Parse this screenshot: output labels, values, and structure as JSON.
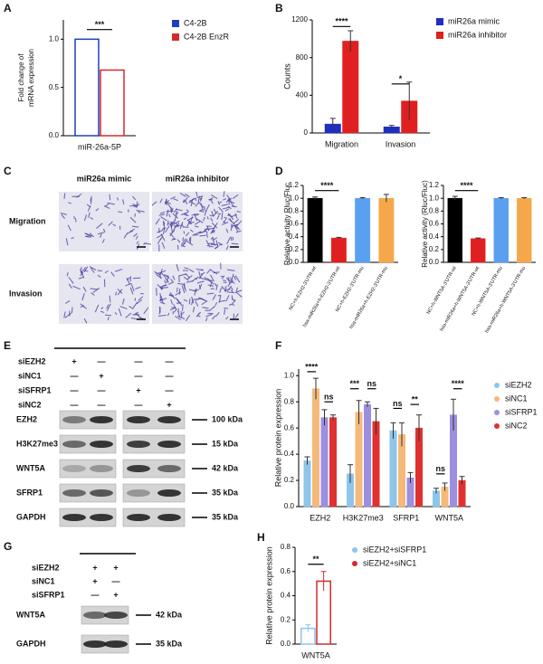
{
  "panel_labels": [
    "A",
    "B",
    "C",
    "D",
    "E",
    "F",
    "G",
    "H"
  ],
  "chart_data": [
    {
      "type": "bar",
      "y_label": [
        "Fold change of",
        "mRNA expression"
      ],
      "categories": [
        "miR-26a-5P"
      ],
      "series": [
        {
          "name": "C4-2B",
          "color": "#1f3fbf",
          "values": [
            1.0
          ]
        },
        {
          "name": "C4-2B EnzR",
          "color": "#d42a2a",
          "values": [
            0.68
          ]
        }
      ],
      "bar_fill": "outline",
      "ylim": [
        0,
        1.2
      ],
      "yticks": [
        {
          "value": 0,
          "label": "0.0"
        },
        {
          "value": 0.5,
          "label": "0.5"
        },
        {
          "value": 1,
          "label": "1.0"
        }
      ],
      "annotations": [
        "***"
      ]
    },
    {
      "type": "bar",
      "y_label": [
        "Counts"
      ],
      "categories": [
        "Migration",
        "Invasion"
      ],
      "series": [
        {
          "name": "miR26a mimic",
          "color": "#1f2fbf",
          "values": [
            95,
            65
          ],
          "errors": [
            60,
            15
          ]
        },
        {
          "name": "miR26a inhibitor",
          "color": "#e02020",
          "values": [
            975,
            340
          ],
          "errors": [
            110,
            200
          ]
        }
      ],
      "ylim": [
        0,
        1200
      ],
      "yticks": [
        0,
        400,
        800,
        1200
      ],
      "annotations": [
        "****",
        "*"
      ]
    },
    {
      "type": "bar",
      "y_label": [
        "Relative activity Rluc/Fluc"
      ],
      "categories": [
        "NC+h-EZH2-3'UTR-wt",
        "hsa-miR26a+h-EZH2-3'UTR-wt",
        "NC+h-EZH2-3'UTR-mu",
        "hsa-miR26a+h-EZH2-3'UTR-mu"
      ],
      "values": [
        1.0,
        0.38,
        1.0,
        1.0
      ],
      "errors": [
        0.02,
        0.01,
        0.01,
        0.06
      ],
      "colors": [
        "#000000",
        "#e02020",
        "#5aa0f0",
        "#f5a84a"
      ],
      "ylim": [
        0,
        1.2
      ],
      "yticks": [
        {
          "value": 0,
          "label": "0.0"
        },
        {
          "value": 0.2,
          "label": "0.2"
        },
        {
          "value": 0.4,
          "label": "0.4"
        },
        {
          "value": 0.6,
          "label": "0.6"
        },
        {
          "value": 0.8,
          "label": "0.8"
        },
        {
          "value": 1,
          "label": "1.0"
        },
        {
          "value": 1.2,
          "label": "1.2"
        }
      ],
      "annotations": [
        "****"
      ]
    },
    {
      "type": "bar",
      "y_label": [
        "Relative activity (Rluc/Fluc)"
      ],
      "categories": [
        "NC+h-WNT5A-3'UTR-wt",
        "hsa-miR26a+h-WNT5A-3'UTR-wt",
        "NC+h-WNT5A-3'UTR-mu",
        "hsa-miR26a+h-WNT5A-3'UTR-mu"
      ],
      "values": [
        1.0,
        0.37,
        1.0,
        1.0
      ],
      "errors": [
        0.03,
        0.01,
        0.01,
        0.01
      ],
      "colors": [
        "#000000",
        "#e02020",
        "#5aa0f0",
        "#f5a84a"
      ],
      "ylim": [
        0,
        1.2
      ],
      "yticks": [
        {
          "value": 0,
          "label": "0.0"
        },
        {
          "value": 0.2,
          "label": "0.2"
        },
        {
          "value": 0.4,
          "label": "0.4"
        },
        {
          "value": 0.6,
          "label": "0.6"
        },
        {
          "value": 0.8,
          "label": "0.8"
        },
        {
          "value": 1,
          "label": "1.0"
        },
        {
          "value": 1.2,
          "label": "1.2"
        }
      ],
      "annotations": [
        "****"
      ]
    },
    {
      "type": "bar",
      "y_label": [
        "Relative protein expression"
      ],
      "categories": [
        "EZH2",
        "H3K27me3",
        "SFRP1",
        "WNT5A"
      ],
      "series": [
        {
          "name": "siEZH2",
          "color": "#8ec5ea",
          "values": [
            0.35,
            0.25,
            0.58,
            0.12
          ],
          "errors": [
            0.03,
            0.07,
            0.06,
            0.02
          ]
        },
        {
          "name": "siNC1",
          "color": "#f5b97a",
          "values": [
            0.9,
            0.72,
            0.55,
            0.15
          ],
          "errors": [
            0.08,
            0.09,
            0.09,
            0.03
          ]
        },
        {
          "name": "siSFRP1",
          "color": "#9b8fe0",
          "values": [
            0.68,
            0.78,
            0.22,
            0.7
          ],
          "errors": [
            0.06,
            0.02,
            0.04,
            0.12
          ]
        },
        {
          "name": "siNC2",
          "color": "#e03030",
          "values": [
            0.68,
            0.65,
            0.6,
            0.2
          ],
          "errors": [
            0.02,
            0.1,
            0.1,
            0.03
          ]
        }
      ],
      "ylim": [
        0,
        1.05
      ],
      "yticks": [
        {
          "value": 0,
          "label": "0.0"
        },
        {
          "value": 0.2,
          "label": "0.2"
        },
        {
          "value": 0.4,
          "label": "0.4"
        },
        {
          "value": 0.6,
          "label": "0.6"
        },
        {
          "value": 0.8,
          "label": "0.8"
        },
        {
          "value": 1,
          "label": "1.0"
        }
      ],
      "annotations": [
        "****",
        "ns",
        "***",
        "ns",
        "ns",
        "**",
        "ns",
        "****"
      ]
    },
    {
      "type": "bar",
      "y_label": [
        "Relative protein expression"
      ],
      "categories": [
        "WNT5A"
      ],
      "series": [
        {
          "name": "siEZH2+siSFRP1",
          "color": "#8ec5ea",
          "values": [
            0.13
          ],
          "errors": [
            0.03
          ]
        },
        {
          "name": "siEZH2+siNC1",
          "color": "#d42a2a",
          "values": [
            0.52
          ],
          "errors": [
            0.08
          ]
        }
      ],
      "bar_fill": "outline",
      "ylim": [
        0,
        0.8
      ],
      "yticks": [
        {
          "value": 0,
          "label": "0.0"
        },
        {
          "value": 0.2,
          "label": "0.2"
        },
        {
          "value": 0.4,
          "label": "0.4"
        },
        {
          "value": 0.6,
          "label": "0.6"
        },
        {
          "value": 0.8,
          "label": "0.8"
        }
      ],
      "annotations": [
        "**"
      ]
    }
  ],
  "panel_c": {
    "columns": [
      "miR26a mimic",
      "miR26a inhibitor"
    ],
    "rows": [
      "Migration",
      "Invasion"
    ]
  },
  "panel_e": {
    "conditions": [
      {
        "name": "siEZH2",
        "marks": [
          "+",
          "—",
          "—",
          "—"
        ]
      },
      {
        "name": "siNC1",
        "marks": [
          "—",
          "+",
          "—",
          "—"
        ]
      },
      {
        "name": "siSFRP1",
        "marks": [
          "—",
          "—",
          "+",
          "—"
        ]
      },
      {
        "name": "siNC2",
        "marks": [
          "—",
          "—",
          "—",
          "+"
        ]
      }
    ],
    "blots": [
      {
        "protein": "EZH2",
        "size": "100 kDa"
      },
      {
        "protein": "H3K27me3",
        "size": "15 kDa"
      },
      {
        "protein": "WNT5A",
        "size": "42 kDa"
      },
      {
        "protein": "SFRP1",
        "size": "35 kDa"
      },
      {
        "protein": "GAPDH",
        "size": "35 kDa"
      }
    ]
  },
  "panel_g": {
    "conditions": [
      {
        "name": "siEZH2",
        "marks": [
          "+",
          "+"
        ]
      },
      {
        "name": "siNC1",
        "marks": [
          "+",
          "—"
        ]
      },
      {
        "name": "siSFRP1",
        "marks": [
          "—",
          "+"
        ]
      }
    ],
    "blots": [
      {
        "protein": "WNT5A",
        "size": "42 kDa"
      },
      {
        "protein": "GAPDH",
        "size": "35 kDa"
      }
    ]
  }
}
